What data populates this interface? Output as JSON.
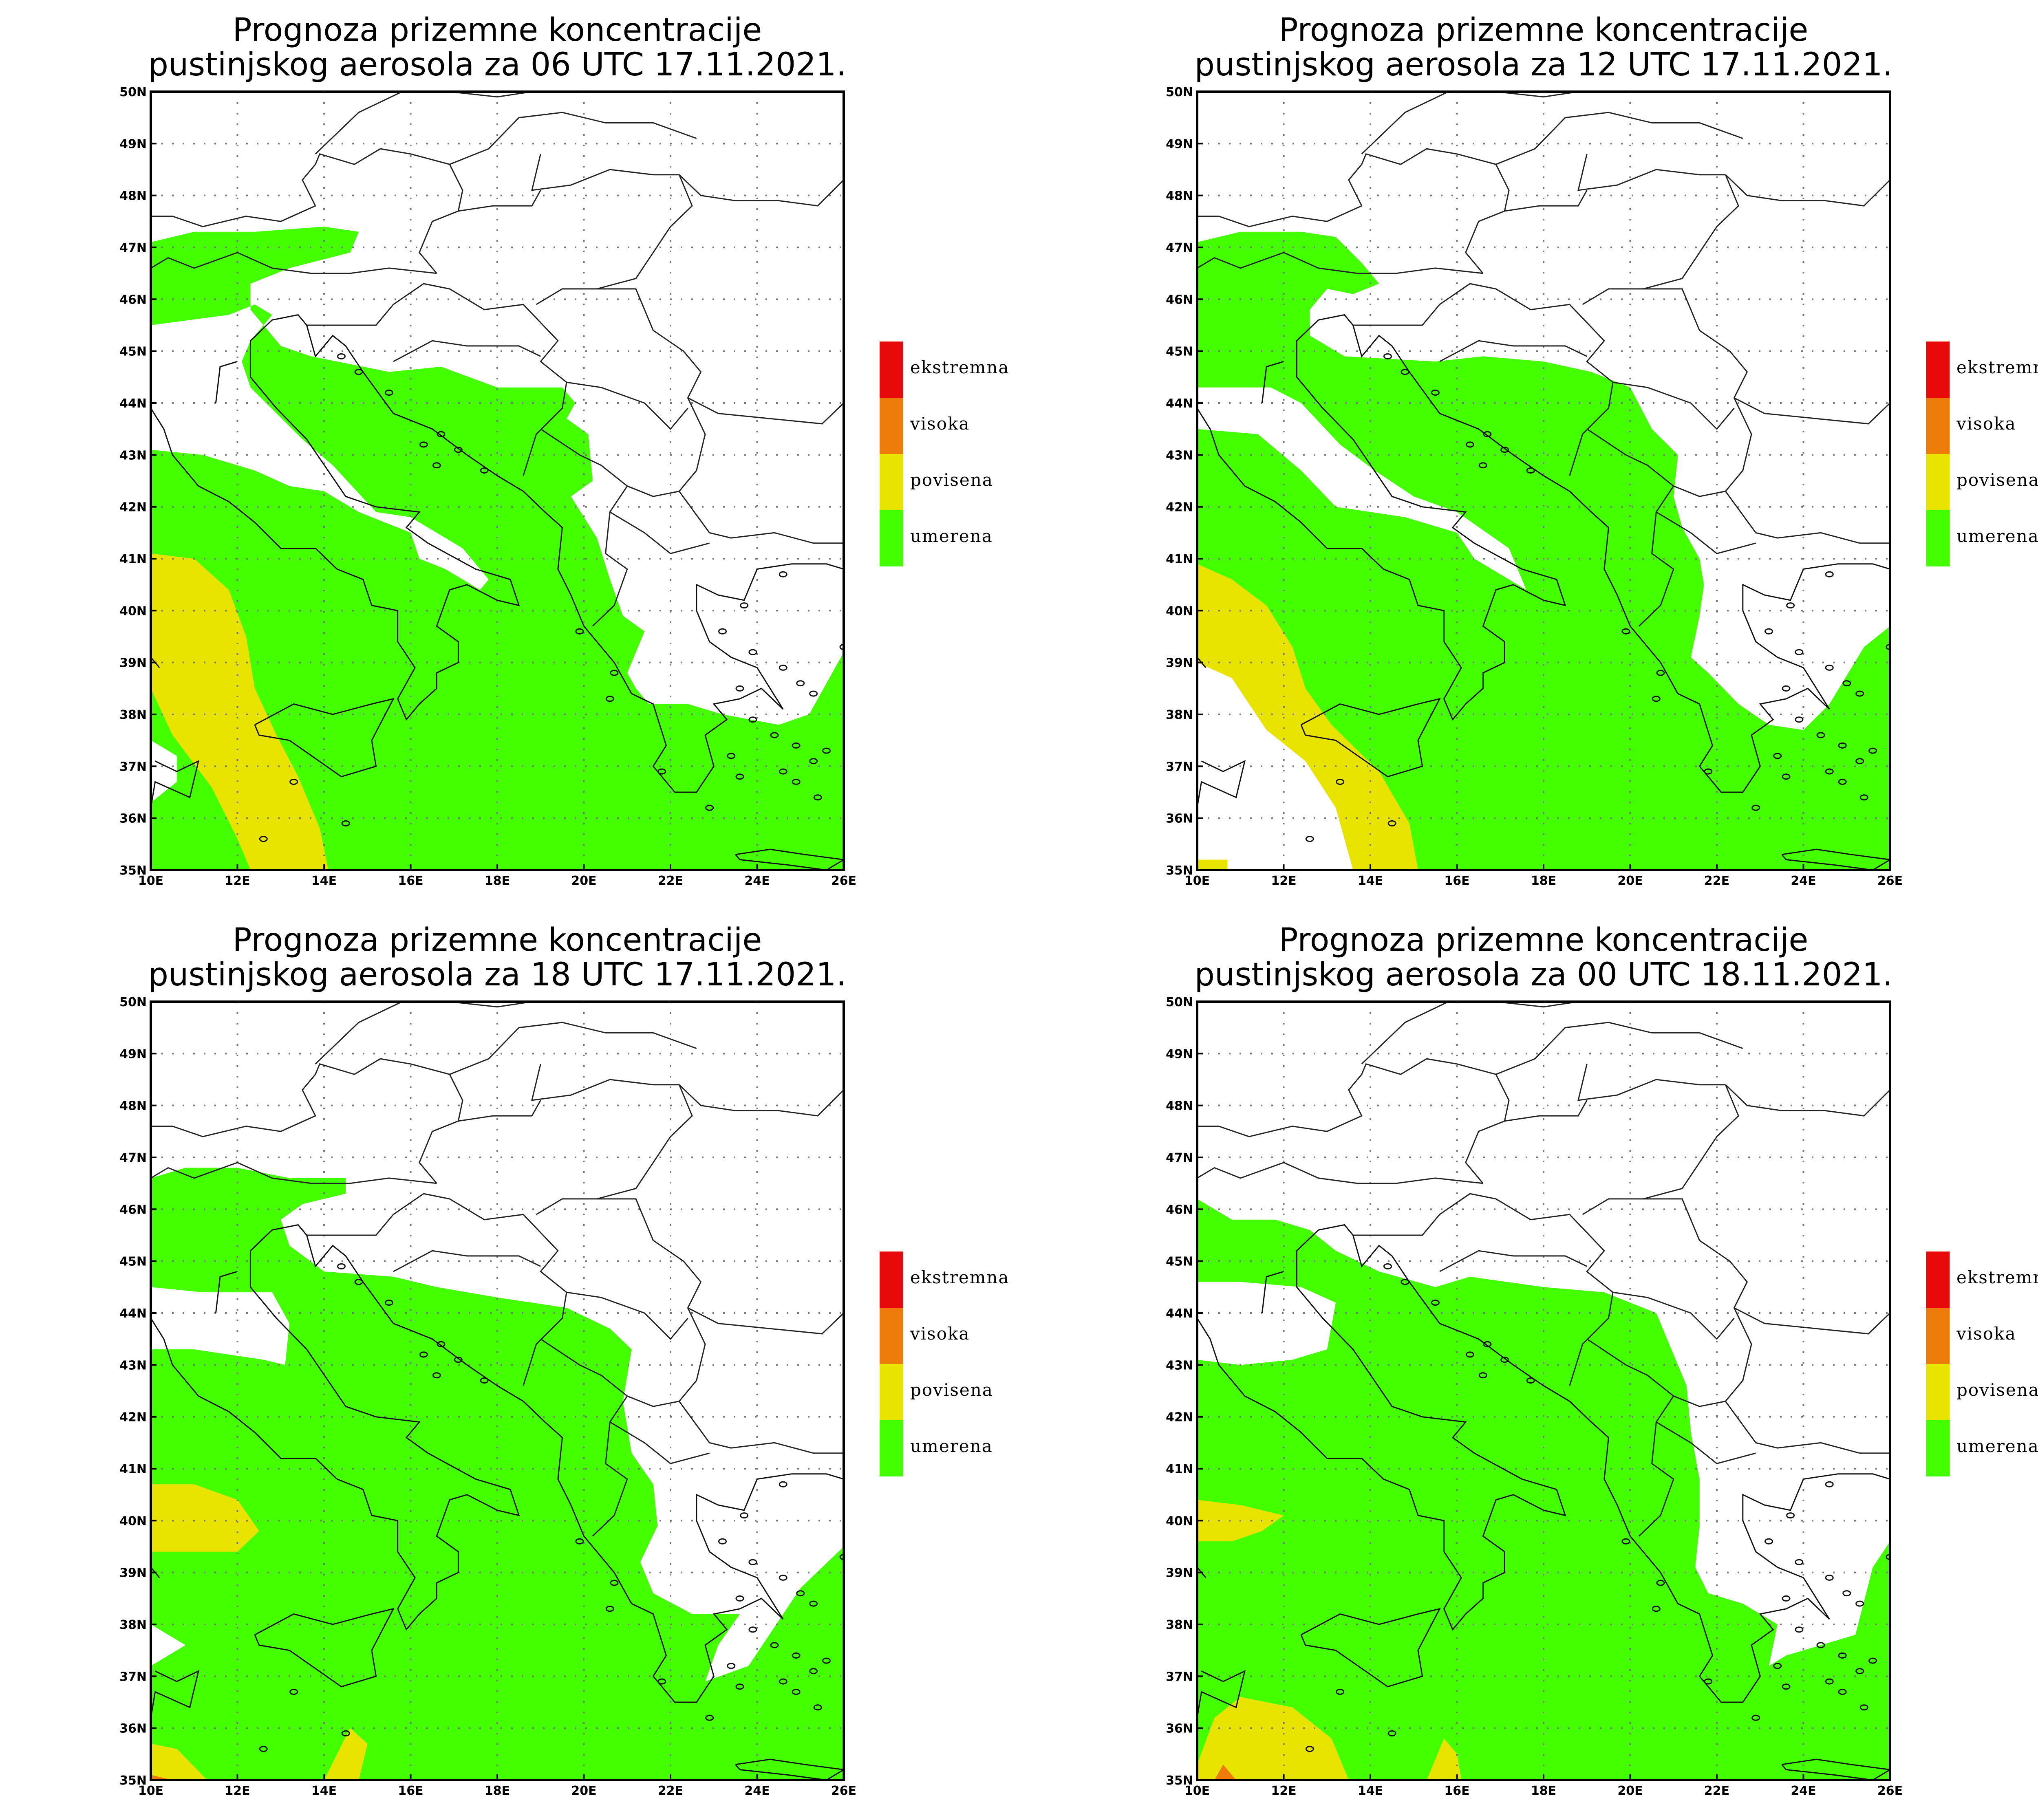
{
  "colors": {
    "umerena": "#44ff00",
    "povisena": "#e8e400",
    "visoka": "#ee7c0a",
    "ekstremna": "#e80a0a"
  },
  "legend": [
    {
      "key": "ekstremna",
      "label": "ekstremna"
    },
    {
      "key": "visoka",
      "label": "visoka"
    },
    {
      "key": "povisena",
      "label": "povisena"
    },
    {
      "key": "umerena",
      "label": "umerena"
    }
  ],
  "axes": {
    "lon_labels": [
      "10E",
      "12E",
      "14E",
      "16E",
      "18E",
      "20E",
      "22E",
      "24E",
      "26E"
    ],
    "lat_labels": [
      "35N",
      "36N",
      "37N",
      "38N",
      "39N",
      "40N",
      "41N",
      "42N",
      "43N",
      "44N",
      "45N",
      "46N",
      "47N",
      "48N",
      "49N",
      "50N"
    ],
    "lon_range": [
      10,
      26
    ],
    "lat_range": [
      35,
      50
    ]
  },
  "panels": [
    {
      "title_line1": "Prognoza prizemne koncentracije",
      "title_line2": "pustinjskog aerosola za 06 UTC 17.11.2021.",
      "umerena": [
        [
          [
            10,
            47.1
          ],
          [
            11,
            47.3
          ],
          [
            12.4,
            47.3
          ],
          [
            14,
            47.4
          ],
          [
            14.8,
            47.3
          ],
          [
            14.6,
            46.9
          ],
          [
            13.2,
            46.6
          ],
          [
            12.3,
            46.3
          ],
          [
            12.3,
            45.8
          ],
          [
            13,
            45.1
          ],
          [
            13.7,
            44.9
          ],
          [
            15.5,
            44.6
          ],
          [
            16.7,
            44.7
          ],
          [
            18,
            44.3
          ],
          [
            19.5,
            44.3
          ],
          [
            19.8,
            44
          ],
          [
            19.6,
            43.7
          ],
          [
            20.1,
            43.4
          ],
          [
            20.2,
            42.5
          ],
          [
            19.7,
            42.2
          ],
          [
            20.3,
            41.4
          ],
          [
            20.6,
            40.6
          ],
          [
            20.9,
            39.9
          ],
          [
            21.4,
            39.6
          ],
          [
            21,
            38.8
          ],
          [
            21.2,
            38.5
          ],
          [
            21.5,
            38.2
          ],
          [
            22.4,
            38.2
          ],
          [
            23.2,
            38
          ],
          [
            24.5,
            37.8
          ],
          [
            25.2,
            38
          ],
          [
            26,
            39.2
          ],
          [
            26,
            35
          ],
          [
            10,
            35
          ],
          [
            10,
            36.3
          ],
          [
            10.6,
            36.7
          ],
          [
            10.6,
            37.2
          ],
          [
            10,
            37.5
          ],
          [
            10,
            43.1
          ],
          [
            11.2,
            43
          ],
          [
            12.4,
            42.7
          ],
          [
            13.2,
            42.4
          ],
          [
            14,
            42.3
          ],
          [
            14.8,
            41.9
          ],
          [
            16,
            41.5
          ],
          [
            16.2,
            41
          ],
          [
            16.8,
            40.8
          ],
          [
            17.6,
            40.4
          ],
          [
            17.8,
            40.6
          ],
          [
            17.2,
            41.2
          ],
          [
            16,
            41.8
          ],
          [
            15.2,
            41.9
          ],
          [
            14.2,
            42.8
          ],
          [
            13.5,
            43.3
          ],
          [
            12.3,
            44.3
          ],
          [
            12.1,
            44.8
          ],
          [
            12.3,
            45.2
          ],
          [
            12.8,
            45.7
          ],
          [
            12.4,
            45.9
          ],
          [
            11.8,
            45.7
          ],
          [
            10,
            45.5
          ]
        ]
      ],
      "povisena": [
        [
          [
            10,
            41.1
          ],
          [
            11,
            41
          ],
          [
            11.8,
            40.4
          ],
          [
            12.2,
            39.5
          ],
          [
            12.4,
            38.5
          ],
          [
            12.9,
            37.6
          ],
          [
            13.4,
            36.8
          ],
          [
            13.9,
            35.8
          ],
          [
            14.1,
            35
          ],
          [
            12.3,
            35
          ],
          [
            12,
            35.6
          ],
          [
            11.4,
            36.6
          ],
          [
            10.5,
            37.6
          ],
          [
            10,
            38.5
          ]
        ]
      ],
      "visoka": [],
      "ekstremna": []
    },
    {
      "title_line1": "Prognoza prizemne koncentracije",
      "title_line2": "pustinjskog aerosola za 12 UTC 17.11.2021.",
      "umerena": [
        [
          [
            10,
            47.1
          ],
          [
            11,
            47.3
          ],
          [
            12.4,
            47.3
          ],
          [
            13.2,
            47.2
          ],
          [
            13.8,
            46.7
          ],
          [
            14.2,
            46.3
          ],
          [
            13.6,
            46.1
          ],
          [
            13,
            46.2
          ],
          [
            12.6,
            45.8
          ],
          [
            12.6,
            45.3
          ],
          [
            13.4,
            44.9
          ],
          [
            15.5,
            44.8
          ],
          [
            16.6,
            44.9
          ],
          [
            18,
            44.8
          ],
          [
            19.1,
            44.6
          ],
          [
            20,
            44.3
          ],
          [
            20.5,
            43.5
          ],
          [
            21.1,
            43
          ],
          [
            21,
            42.2
          ],
          [
            21.2,
            41.6
          ],
          [
            21.6,
            41
          ],
          [
            21.7,
            40.5
          ],
          [
            21.6,
            39.9
          ],
          [
            21.4,
            39.1
          ],
          [
            21.8,
            38.8
          ],
          [
            22.5,
            38.2
          ],
          [
            23.2,
            37.8
          ],
          [
            24,
            37.7
          ],
          [
            24.6,
            38.2
          ],
          [
            25.4,
            39.3
          ],
          [
            26,
            39.7
          ],
          [
            26,
            35
          ],
          [
            15,
            35
          ],
          [
            14.8,
            35.9
          ],
          [
            14.4,
            36.5
          ],
          [
            13.6,
            37.3
          ],
          [
            12.6,
            38.2
          ],
          [
            11.9,
            38.6
          ],
          [
            11.1,
            38.9
          ],
          [
            10,
            39
          ],
          [
            10,
            43.5
          ],
          [
            11.4,
            43.4
          ],
          [
            12.4,
            42.7
          ],
          [
            13.2,
            42
          ],
          [
            14.8,
            41.8
          ],
          [
            16,
            41.5
          ],
          [
            16.4,
            41
          ],
          [
            17.6,
            40.4
          ],
          [
            17.2,
            41.2
          ],
          [
            16,
            41.9
          ],
          [
            15,
            42.2
          ],
          [
            14.1,
            42.7
          ],
          [
            13.3,
            43.2
          ],
          [
            12.4,
            44
          ],
          [
            11.7,
            44.3
          ],
          [
            10,
            44.3
          ]
        ]
      ],
      "povisena": [
        [
          [
            10,
            40.9
          ],
          [
            10.8,
            40.6
          ],
          [
            11.6,
            40.1
          ],
          [
            12.2,
            39.3
          ],
          [
            12.5,
            38.5
          ],
          [
            13.1,
            37.8
          ],
          [
            14.2,
            36.9
          ],
          [
            14.9,
            35.9
          ],
          [
            15.1,
            35
          ],
          [
            13.6,
            35
          ],
          [
            13.2,
            36.2
          ],
          [
            12.5,
            37.1
          ],
          [
            11.6,
            37.7
          ],
          [
            10.8,
            38.7
          ],
          [
            10,
            39
          ]
        ],
        [
          [
            10,
            35
          ],
          [
            10.7,
            35
          ],
          [
            10.7,
            35.2
          ],
          [
            10,
            35.2
          ]
        ]
      ],
      "visoka": [],
      "ekstremna": []
    },
    {
      "title_line1": "Prognoza prizemne koncentracije",
      "title_line2": "pustinjskog aerosola za 18 UTC 17.11.2021.",
      "umerena": [
        [
          [
            10,
            46.6
          ],
          [
            10.8,
            46.8
          ],
          [
            12,
            46.8
          ],
          [
            13.2,
            46.6
          ],
          [
            14.5,
            46.6
          ],
          [
            14.5,
            46.3
          ],
          [
            13.5,
            46.1
          ],
          [
            13,
            45.8
          ],
          [
            13.2,
            45.3
          ],
          [
            14,
            44.8
          ],
          [
            15.6,
            44.7
          ],
          [
            16.6,
            44.5
          ],
          [
            18,
            44.3
          ],
          [
            19.6,
            44.1
          ],
          [
            20.6,
            43.7
          ],
          [
            21.1,
            43.3
          ],
          [
            20.9,
            42.3
          ],
          [
            21.1,
            41.3
          ],
          [
            21.6,
            40.7
          ],
          [
            21.7,
            39.9
          ],
          [
            21.3,
            39.2
          ],
          [
            21.6,
            38.6
          ],
          [
            22.5,
            38.2
          ],
          [
            23.6,
            38.2
          ],
          [
            23.1,
            37.6
          ],
          [
            22.8,
            36.9
          ],
          [
            23.8,
            37.2
          ],
          [
            25,
            38.7
          ],
          [
            26,
            39.5
          ],
          [
            26,
            35
          ],
          [
            14.8,
            35
          ],
          [
            15,
            35.7
          ],
          [
            14.6,
            36
          ],
          [
            14,
            35
          ],
          [
            11.3,
            35
          ],
          [
            10.6,
            35.6
          ],
          [
            10,
            35.7
          ],
          [
            10,
            37.2
          ],
          [
            10.8,
            37.6
          ],
          [
            10,
            38
          ],
          [
            10,
            43.3
          ],
          [
            11,
            43.3
          ],
          [
            12.6,
            43.1
          ],
          [
            13.1,
            43
          ],
          [
            13.2,
            43.8
          ],
          [
            12.8,
            44.4
          ],
          [
            11.2,
            44.4
          ],
          [
            10,
            44.5
          ]
        ]
      ],
      "povisena": [
        [
          [
            10,
            40.7
          ],
          [
            11,
            40.7
          ],
          [
            12,
            40.4
          ],
          [
            12.5,
            39.8
          ],
          [
            12,
            39.4
          ],
          [
            10.8,
            39.4
          ],
          [
            10,
            39.4
          ]
        ],
        [
          [
            10,
            35.7
          ],
          [
            10.6,
            35.6
          ],
          [
            11.3,
            35
          ],
          [
            10,
            35
          ]
        ],
        [
          [
            14,
            35
          ],
          [
            14.6,
            36
          ],
          [
            15,
            35.7
          ],
          [
            14.8,
            35
          ]
        ]
      ],
      "visoka": [
        [
          [
            10,
            35.1
          ],
          [
            10.5,
            35
          ],
          [
            10,
            35
          ]
        ]
      ],
      "ekstremna": []
    },
    {
      "title_line1": "Prognoza prizemne koncentracije",
      "title_line2": "pustinjskog aerosola za 00 UTC 18.11.2021.",
      "umerena": [
        [
          [
            10,
            46.2
          ],
          [
            10.8,
            45.8
          ],
          [
            11.8,
            45.8
          ],
          [
            12.6,
            45.6
          ],
          [
            13.2,
            45.2
          ],
          [
            14.2,
            44.8
          ],
          [
            15.5,
            44.5
          ],
          [
            16.3,
            44.7
          ],
          [
            18,
            44.5
          ],
          [
            19.4,
            44.4
          ],
          [
            20.6,
            44
          ],
          [
            21.3,
            42.6
          ],
          [
            21.4,
            41.7
          ],
          [
            21.6,
            40.8
          ],
          [
            21.6,
            39.9
          ],
          [
            21.5,
            39.1
          ],
          [
            21.8,
            38.6
          ],
          [
            22.6,
            38.4
          ],
          [
            23.4,
            38
          ],
          [
            23.2,
            37.2
          ],
          [
            23.6,
            37.4
          ],
          [
            25.2,
            37.8
          ],
          [
            25.6,
            39.1
          ],
          [
            26,
            39.6
          ],
          [
            26,
            35
          ],
          [
            16.1,
            35
          ],
          [
            16,
            35.5
          ],
          [
            15.7,
            35.8
          ],
          [
            15.3,
            35
          ],
          [
            13.5,
            35
          ],
          [
            13.1,
            35.8
          ],
          [
            12.2,
            36.4
          ],
          [
            11,
            36.6
          ],
          [
            10.4,
            36.2
          ],
          [
            10,
            35.3
          ],
          [
            10,
            43.1
          ],
          [
            11,
            43
          ],
          [
            12.2,
            43.1
          ],
          [
            13,
            43.3
          ],
          [
            13.2,
            44.2
          ],
          [
            12.4,
            44.5
          ],
          [
            11,
            44.6
          ],
          [
            10,
            44.6
          ]
        ]
      ],
      "povisena": [
        [
          [
            10,
            40.4
          ],
          [
            11,
            40.3
          ],
          [
            12,
            40.1
          ],
          [
            11.5,
            39.8
          ],
          [
            10.8,
            39.6
          ],
          [
            10,
            39.6
          ]
        ],
        [
          [
            10,
            35.3
          ],
          [
            10.4,
            36.2
          ],
          [
            11,
            36.6
          ],
          [
            12.2,
            36.4
          ],
          [
            13.1,
            35.8
          ],
          [
            13.5,
            35
          ],
          [
            10,
            35
          ]
        ],
        [
          [
            15.3,
            35
          ],
          [
            15.7,
            35.8
          ],
          [
            16,
            35.5
          ],
          [
            16.1,
            35
          ]
        ]
      ],
      "visoka": [
        [
          [
            10.4,
            35
          ],
          [
            10.6,
            35.3
          ],
          [
            10.9,
            35
          ],
          [
            10.4,
            35
          ]
        ]
      ],
      "ekstremna": []
    }
  ]
}
